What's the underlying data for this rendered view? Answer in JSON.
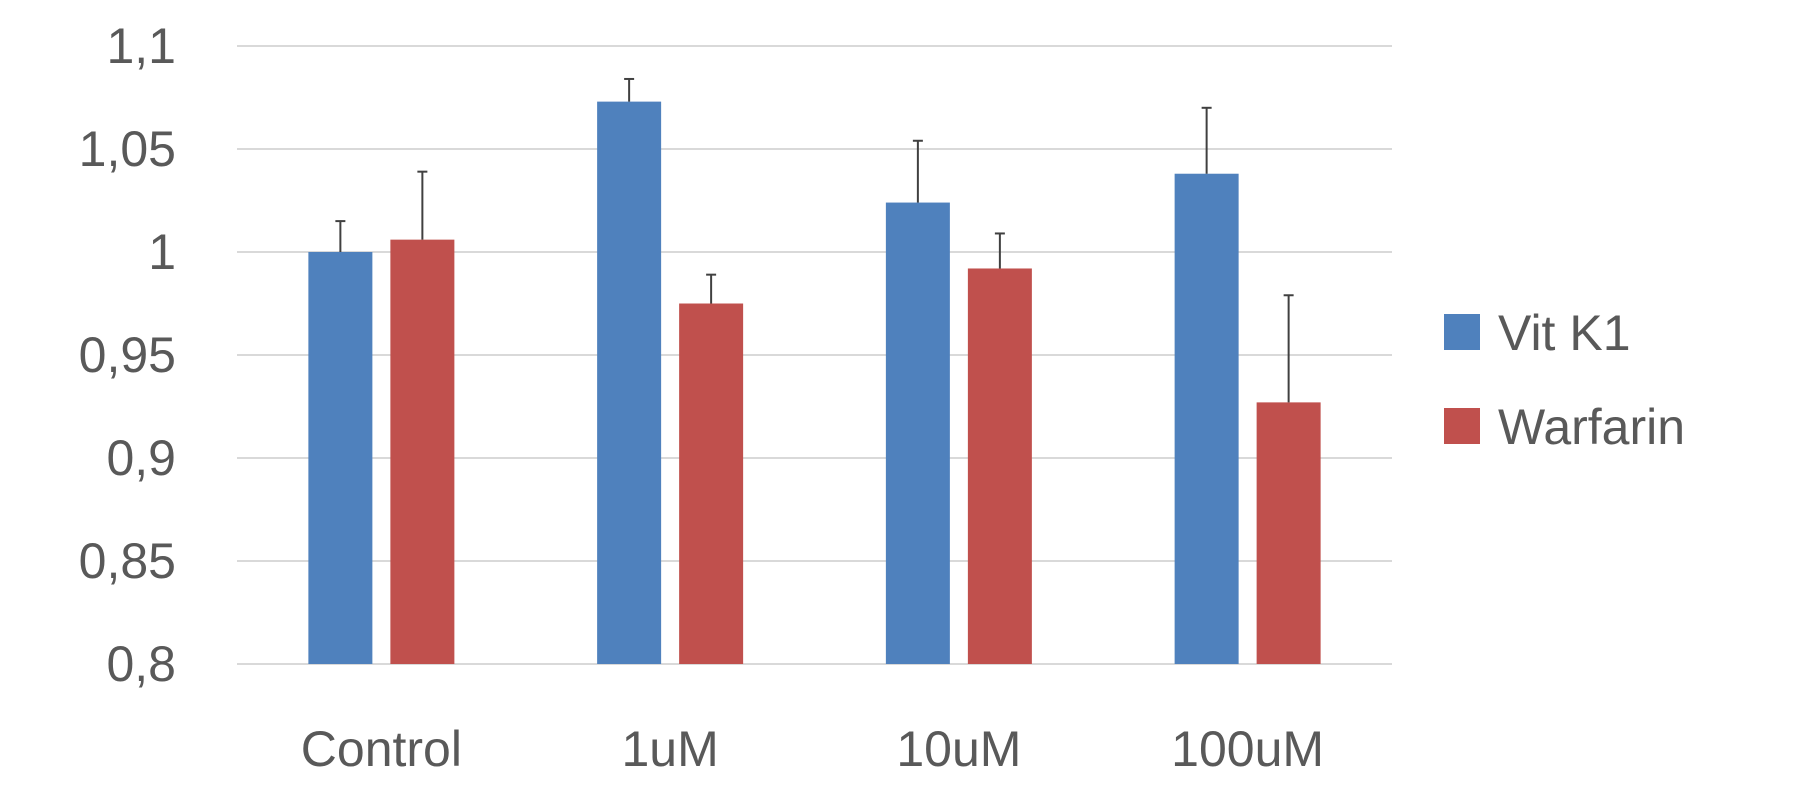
{
  "chart_data": {
    "type": "bar",
    "title": "",
    "xlabel": "",
    "ylabel": "",
    "categories": [
      "Control",
      "1uM",
      "10uM",
      "100uM"
    ],
    "series": [
      {
        "name": "Vit K1",
        "color": "#4f81bd",
        "values": [
          1.0,
          1.073,
          1.024,
          1.038
        ],
        "errors": [
          0.015,
          0.011,
          0.03,
          0.032
        ]
      },
      {
        "name": "Warfarin",
        "color": "#c0504d",
        "values": [
          1.006,
          0.975,
          0.992,
          0.927
        ],
        "errors": [
          0.033,
          0.014,
          0.017,
          0.052
        ]
      }
    ],
    "ylim": [
      0.8,
      1.1
    ],
    "yticks": [
      0.8,
      0.85,
      0.9,
      0.95,
      1.0,
      1.05,
      1.1
    ],
    "ytick_labels": [
      "0,8",
      "0,85",
      "0,9",
      "0,95",
      "1",
      "1,05",
      "1,1"
    ],
    "grid": true,
    "legend_position": "right"
  }
}
